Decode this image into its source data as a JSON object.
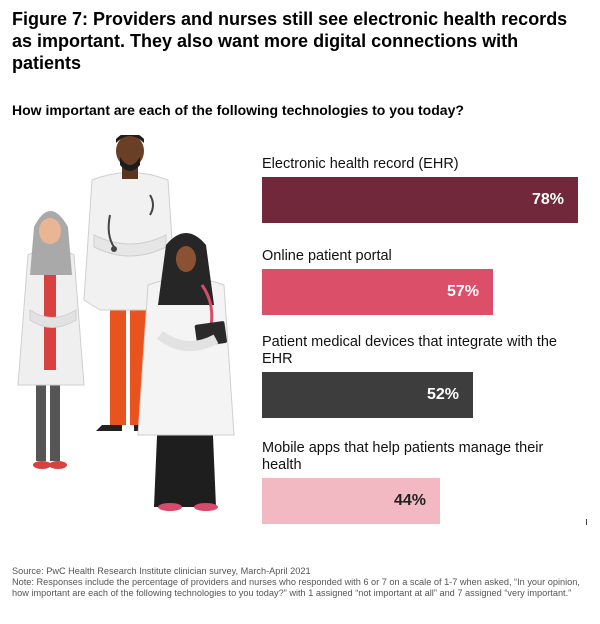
{
  "title": "Figure 7: Providers and nurses still see electronic health records as important. They also want more digital connections with patients",
  "question": "How important are each of the following technologies to you today?",
  "chart_data": {
    "type": "bar",
    "orientation": "horizontal",
    "categories": [
      "Electronic health record (EHR)",
      "Online patient portal",
      "Patient medical devices that integrate with the EHR",
      "Mobile apps that help patients manage their health"
    ],
    "values": [
      78,
      57,
      52,
      44
    ],
    "value_labels": [
      "78%",
      "57%",
      "52%",
      "44%"
    ],
    "colors": [
      "#70283a",
      "#db5068",
      "#3d3d3d",
      "#f2b9c3"
    ],
    "label_colors": [
      "#ffffff",
      "#ffffff",
      "#ffffff",
      "#222222"
    ],
    "xlim": [
      0,
      100
    ]
  },
  "footer": {
    "source": "Source: PwC Health Research Institute clinician survey, March-April 2021",
    "note": "Note: Responses include the percentage of providers and nurses who responded with 6 or 7 on a scale of 1-7 when asked, “In your opinion, how important are each of the following technologies to you today?” with 1 assigned “not important at all” and 7 assigned “very important.”"
  }
}
